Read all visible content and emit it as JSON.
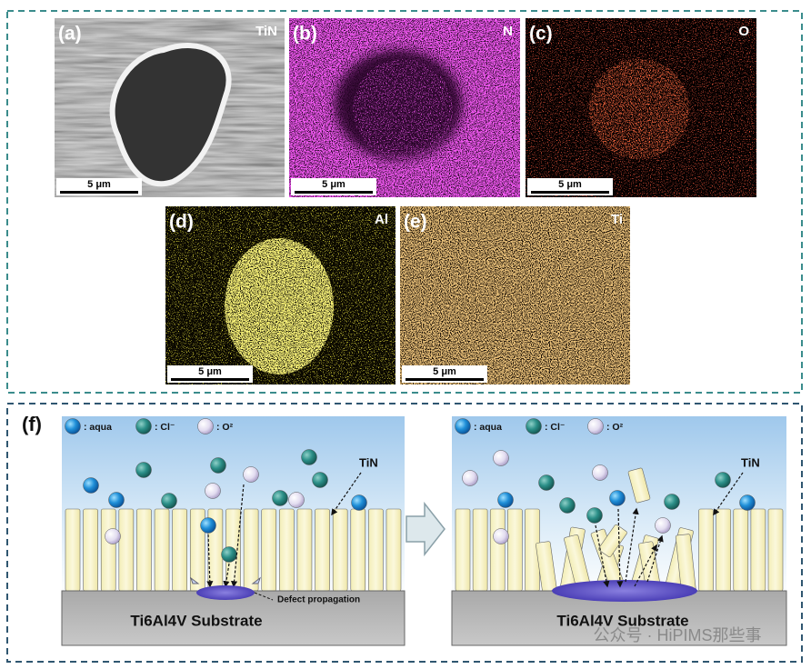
{
  "panels": [
    {
      "label": "(a)",
      "element": "TiN",
      "scale_bar": "5 μm"
    },
    {
      "label": "(b)",
      "element": "N",
      "scale_bar": "5 μm"
    },
    {
      "label": "(c)",
      "element": "O",
      "scale_bar": "5 μm"
    },
    {
      "label": "(d)",
      "element": "Al",
      "scale_bar": "5 μm"
    },
    {
      "label": "(e)",
      "element": "Ti",
      "scale_bar": "5 μm"
    }
  ],
  "schematic": {
    "label": "(f)",
    "left": {
      "legend": [
        ": aqua",
        ": Cl⁻",
        ": O²"
      ],
      "coating": "TiN",
      "annotation": "Defect propagation",
      "substrate": "Ti6Al4V Substrate"
    },
    "right": {
      "legend": [
        ": aqua",
        ": Cl⁻",
        ": O²"
      ],
      "coating": "TiN",
      "substrate": "Ti6Al4V Substrate"
    }
  },
  "watermark": "公众号 · HiPIMS那些事"
}
